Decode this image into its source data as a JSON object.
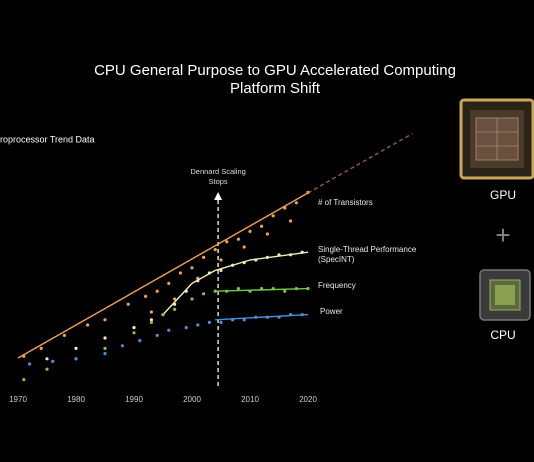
{
  "chart_data": {
    "type": "scatter",
    "title": [
      "CPU General Purpose to GPU Accelerated Computing",
      "Platform Shift"
    ],
    "subtitle": "Microprocessor Trend Data",
    "xlim": [
      1970,
      2020
    ],
    "xticks": [
      1970,
      1980,
      1990,
      2000,
      2010,
      2020
    ],
    "ylim": [
      0,
      100
    ],
    "annotation": {
      "text": [
        "Dennard Scaling",
        "Stops"
      ],
      "x": 2004.5
    },
    "series": [
      {
        "name": "# of Transistors",
        "color": "#f0a050",
        "x": [
          1971,
          1974,
          1978,
          1982,
          1985,
          1989,
          1992,
          1994,
          1996,
          1998,
          2000,
          2002,
          2004,
          2006,
          2008,
          2010,
          2012,
          2014,
          2016,
          2018,
          2020,
          1993,
          1997,
          2001,
          2005,
          2009,
          2013,
          2017
        ],
        "values": [
          13,
          16,
          21,
          25,
          27,
          33,
          36,
          38,
          41,
          45,
          47,
          51,
          54,
          57,
          58,
          61,
          63,
          67,
          70,
          72,
          76,
          30,
          35,
          43,
          50,
          55,
          60,
          65
        ],
        "trend_x": [
          1970,
          2020,
          2038
        ],
        "trend_values": [
          12.3,
          75.8,
          98.6
        ]
      },
      {
        "name": "Single-Thread Performance (SpecINT)",
        "color": "#f2ebb8",
        "x": [
          1975,
          1980,
          1985,
          1990,
          1993,
          1995,
          1997,
          1999,
          2001,
          2003,
          2005,
          2007,
          2009,
          2011,
          2013,
          2015,
          2017,
          2019
        ],
        "values": [
          12,
          16,
          20,
          24,
          27,
          29,
          33,
          38,
          42,
          45,
          46,
          48,
          49,
          50,
          51,
          52,
          52,
          53
        ],
        "trend_x": [
          1995,
          2000,
          2004,
          2010,
          2020
        ],
        "trend_values": [
          29,
          41,
          46,
          50,
          53
        ]
      },
      {
        "name": "Frequency",
        "color": "#78c848",
        "x": [
          1971,
          1975,
          1980,
          1985,
          1990,
          1993,
          1995,
          1997,
          2000,
          2002,
          2004,
          2006,
          2008,
          2010,
          2012,
          2014,
          2016,
          2018,
          2020
        ],
        "values": [
          4,
          8,
          12,
          16,
          22,
          26,
          29,
          31,
          35,
          37,
          38,
          38,
          39,
          38,
          39,
          39,
          38,
          39,
          39
        ],
        "trend_x": [
          2004,
          2020
        ],
        "trend_values": [
          38,
          39
        ]
      },
      {
        "name": "Power",
        "color": "#4a90d8",
        "x": [
          1972,
          1976,
          1980,
          1985,
          1988,
          1991,
          1994,
          1996,
          1999,
          2001,
          2003,
          2005,
          2007,
          2009,
          2011,
          2013,
          2015,
          2017,
          2019
        ],
        "values": [
          10,
          11,
          12,
          14,
          17,
          19,
          21,
          23,
          24,
          25,
          26,
          26,
          27,
          27,
          28,
          28,
          28,
          29,
          29
        ],
        "trend_x": [
          2004,
          2020
        ],
        "trend_values": [
          27,
          29
        ]
      }
    ]
  },
  "sidebar": {
    "top": "GPU",
    "plus": "+",
    "bottom": "CPU"
  }
}
